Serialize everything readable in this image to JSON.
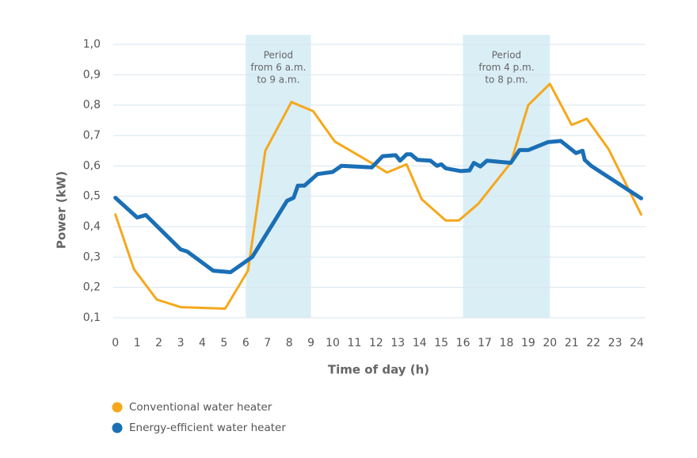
{
  "chart_data": {
    "type": "line",
    "x_label": "Time of day (h)",
    "y_label": "Power (kW)",
    "xlim": [
      -0.1,
      24.4
    ],
    "xticks": [
      0,
      1,
      2,
      3,
      4,
      5,
      6,
      7,
      8,
      9,
      10,
      11,
      12,
      13,
      14,
      15,
      16,
      17,
      18,
      19,
      20,
      21,
      22,
      23,
      24
    ],
    "ylim": [
      0.1,
      1.0
    ],
    "yticks": [
      {
        "value": 0.1,
        "label": "0,1"
      },
      {
        "value": 0.2,
        "label": "0,2"
      },
      {
        "value": 0.3,
        "label": "0,3"
      },
      {
        "value": 0.4,
        "label": "0,4"
      },
      {
        "value": 0.5,
        "label": "0,5"
      },
      {
        "value": 0.6,
        "label": "0,6"
      },
      {
        "value": 0.7,
        "label": "0,7"
      },
      {
        "value": 0.8,
        "label": "0,8"
      },
      {
        "value": 0.9,
        "label": "0,9"
      },
      {
        "value": 1.0,
        "label": "1,0"
      }
    ],
    "grid": true,
    "shaded_regions": [
      {
        "x": [
          6,
          9
        ],
        "color": "#daeef6",
        "label": [
          "Period",
          "from 6 a.m.",
          "to 9 a.m."
        ]
      },
      {
        "x": [
          16,
          20
        ],
        "color": "#daeef6",
        "label": [
          "Period",
          "from 4 p.m.",
          "to 8 p.m."
        ]
      }
    ],
    "legend": "bottom-left",
    "series": [
      {
        "name": "Conventional water heater",
        "color": "#f5a81c",
        "x": [
          0,
          0.85,
          1.9,
          3,
          5.05,
          6.1,
          6.9,
          8.1,
          9.1,
          10.1,
          11.9,
          12.5,
          13.4,
          14.1,
          15.2,
          15.8,
          16.7,
          18.2,
          19,
          20,
          21,
          21.7,
          22.7,
          24.2
        ],
        "values": [
          0.44,
          0.26,
          0.16,
          0.135,
          0.13,
          0.255,
          0.65,
          0.81,
          0.78,
          0.68,
          0.605,
          0.578,
          0.605,
          0.49,
          0.42,
          0.42,
          0.475,
          0.61,
          0.8,
          0.87,
          0.735,
          0.755,
          0.655,
          0.44
        ]
      },
      {
        "name": "Energy-efficient water heater",
        "color": "#1a6fb5",
        "x": [
          0,
          1,
          1.4,
          3,
          3.3,
          4.5,
          5.3,
          6.3,
          7.9,
          8.2,
          8.4,
          8.7,
          9.3,
          10,
          10.4,
          11.8,
          12.3,
          12.9,
          13.1,
          13.4,
          13.6,
          13.9,
          14.5,
          14.8,
          15,
          15.2,
          15.9,
          16.3,
          16.5,
          16.8,
          17.1,
          18.2,
          18.6,
          19,
          19.9,
          20.5,
          21.2,
          21.5,
          21.6,
          21.9,
          24.2
        ],
        "values": [
          0.495,
          0.43,
          0.438,
          0.325,
          0.318,
          0.255,
          0.25,
          0.3,
          0.485,
          0.495,
          0.535,
          0.535,
          0.573,
          0.58,
          0.6,
          0.595,
          0.632,
          0.635,
          0.617,
          0.638,
          0.638,
          0.62,
          0.617,
          0.6,
          0.605,
          0.592,
          0.583,
          0.585,
          0.61,
          0.598,
          0.617,
          0.61,
          0.652,
          0.652,
          0.678,
          0.682,
          0.642,
          0.65,
          0.62,
          0.6,
          0.493
        ]
      }
    ]
  }
}
